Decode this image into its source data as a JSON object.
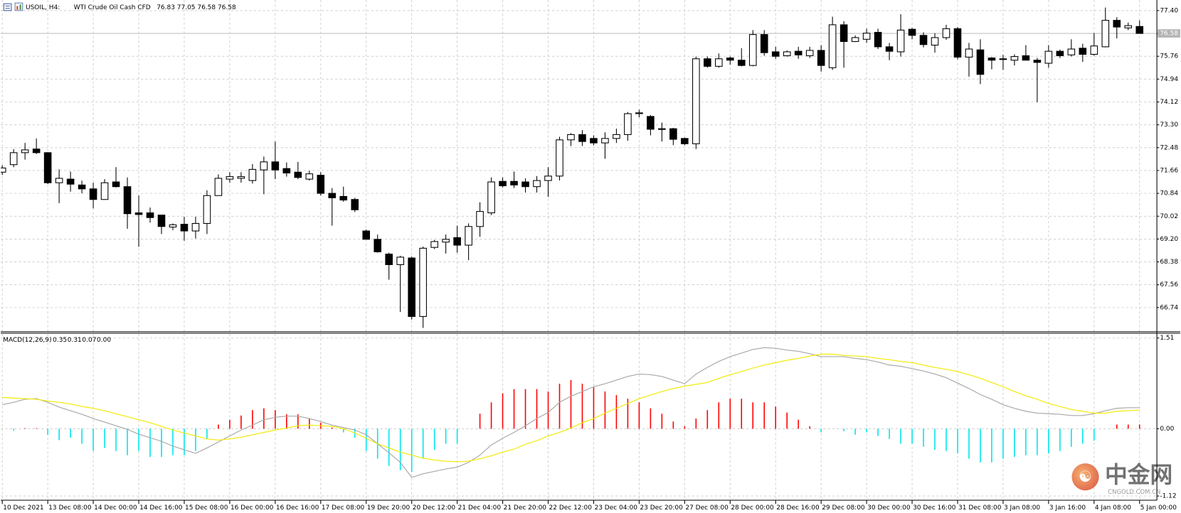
{
  "chart_data": [
    {
      "type": "candlestick",
      "symbol": "USOIL, H4:",
      "description": "WTI Crude Oil Cash CFD",
      "categories": [
        "10 Dec 2021",
        null,
        null,
        null,
        "13 Dec 08:00",
        null,
        null,
        null,
        "14 Dec 00:00",
        null,
        null,
        null,
        "14 Dec 16:00",
        null,
        null,
        null,
        "15 Dec 08:00",
        null,
        null,
        null,
        "16 Dec 00:00",
        null,
        null,
        null,
        "16 Dec 16:00",
        null,
        null,
        null,
        "17 Dec 08:00",
        null,
        null,
        null,
        "19 Dec 20:00",
        null,
        null,
        null,
        "20 Dec 12:00",
        null,
        null,
        null,
        "21 Dec 04:00",
        null,
        null,
        null,
        "21 Dec 20:00",
        null,
        null,
        null,
        "22 Dec 12:00",
        null,
        null,
        null,
        "23 Dec 04:00",
        null,
        null,
        null,
        "23 Dec 20:00",
        null,
        null,
        null,
        "27 Dec 08:00",
        null,
        null,
        null,
        "28 Dec 00:00",
        null,
        null,
        null,
        "28 Dec 16:00",
        null,
        null,
        null,
        "29 Dec 08:00",
        null,
        null,
        null,
        "30 Dec 00:00",
        null,
        null,
        null,
        "30 Dec 16:00",
        null,
        null,
        null,
        "31 Dec 08:00",
        null,
        null,
        null,
        "3 Jan 08:00",
        null,
        null,
        null,
        "3 Jan 16:00",
        null,
        null,
        null,
        "4 Jan 08:00",
        null,
        null,
        null,
        "5 Jan 00:00"
      ],
      "open": [
        71.6,
        71.87,
        72.3,
        72.43,
        72.3,
        71.22,
        71.35,
        71.14,
        71.0,
        70.62,
        71.25,
        71.08,
        70.14,
        70.14,
        70.06,
        69.63,
        69.73,
        69.49,
        69.76,
        70.76,
        71.35,
        71.38,
        71.3,
        71.68,
        71.97,
        71.73,
        71.6,
        71.35,
        71.49,
        70.84,
        70.73,
        70.62,
        69.49,
        69.19,
        68.66,
        68.28,
        68.52,
        66.42,
        68.9,
        69.09,
        69.25,
        68.98,
        69.65,
        70.14,
        71.27,
        71.27,
        71.25,
        71.08,
        71.3,
        71.46,
        72.76,
        72.95,
        72.81,
        72.65,
        72.81,
        72.95,
        73.7,
        73.6,
        73.16,
        73.16,
        72.81,
        72.62,
        75.67,
        75.4,
        75.7,
        75.62,
        75.43,
        76.54,
        75.92,
        75.78,
        75.94,
        75.78,
        75.97,
        75.35,
        76.89,
        76.29,
        76.37,
        76.62,
        76.1,
        75.92,
        76.73,
        76.51,
        76.16,
        76.43,
        76.75,
        75.73,
        75.99,
        75.7,
        75.67,
        75.62,
        75.78,
        75.62,
        75.51,
        75.94,
        75.81,
        76.05,
        75.83,
        76.1,
        77.05,
        76.78,
        76.83
      ],
      "high": [
        71.85,
        72.43,
        72.65,
        72.81,
        72.32,
        71.7,
        71.62,
        71.3,
        71.22,
        71.35,
        71.78,
        71.41,
        70.76,
        70.33,
        70.06,
        69.76,
        70.0,
        70.0,
        70.95,
        71.52,
        71.6,
        71.6,
        71.89,
        72.16,
        72.7,
        71.95,
        71.97,
        71.65,
        71.6,
        71.03,
        71.08,
        70.68,
        69.54,
        69.36,
        68.71,
        68.6,
        68.57,
        68.93,
        69.17,
        69.36,
        69.68,
        69.76,
        70.52,
        71.41,
        71.41,
        71.62,
        71.38,
        71.46,
        71.78,
        72.87,
        73.0,
        73.11,
        72.92,
        73.03,
        73.16,
        73.76,
        73.84,
        73.65,
        73.38,
        73.19,
        72.84,
        75.75,
        75.75,
        75.86,
        75.75,
        76.05,
        76.7,
        76.7,
        76.1,
        75.97,
        76.1,
        76.1,
        76.16,
        77.18,
        77.02,
        76.51,
        76.75,
        76.75,
        76.24,
        77.27,
        76.78,
        76.62,
        76.59,
        76.89,
        76.81,
        76.24,
        76.37,
        75.73,
        75.81,
        75.83,
        76.16,
        75.7,
        76.16,
        76.0,
        76.37,
        76.21,
        76.59,
        77.51,
        77.16,
        76.97,
        77.05
      ],
      "low": [
        71.5,
        71.78,
        72.05,
        72.25,
        71.17,
        70.49,
        70.9,
        70.84,
        70.3,
        70.62,
        71.05,
        69.57,
        68.92,
        69.79,
        69.38,
        69.52,
        69.14,
        69.22,
        69.38,
        70.76,
        71.22,
        71.22,
        71.19,
        70.81,
        71.35,
        71.44,
        71.35,
        71.3,
        70.76,
        69.68,
        70.54,
        70.17,
        69.19,
        68.71,
        67.74,
        66.58,
        66.31,
        66.01,
        68.84,
        68.68,
        68.71,
        68.44,
        69.28,
        70.06,
        71.05,
        71.03,
        70.87,
        70.87,
        70.71,
        71.3,
        72.54,
        72.54,
        72.57,
        72.08,
        72.65,
        72.73,
        73.57,
        72.92,
        72.7,
        72.57,
        72.57,
        72.43,
        75.35,
        75.35,
        75.46,
        75.4,
        75.4,
        75.78,
        75.67,
        75.75,
        75.67,
        75.7,
        75.21,
        75.27,
        75.35,
        76.27,
        76.24,
        76.02,
        75.62,
        75.75,
        76.37,
        76.08,
        75.89,
        76.35,
        75.65,
        75.03,
        74.76,
        75.29,
        75.27,
        75.43,
        75.62,
        74.11,
        75.35,
        75.7,
        75.75,
        75.56,
        75.78,
        76.08,
        76.4,
        76.7,
        76.58
      ],
      "close": [
        71.75,
        72.3,
        72.4,
        72.3,
        71.22,
        71.38,
        71.17,
        71.0,
        70.62,
        71.22,
        71.08,
        70.11,
        70.08,
        69.97,
        69.65,
        69.71,
        69.49,
        69.76,
        70.76,
        71.38,
        71.44,
        71.44,
        71.7,
        71.97,
        71.68,
        71.57,
        71.41,
        71.54,
        70.84,
        70.68,
        70.6,
        70.25,
        69.19,
        68.74,
        68.28,
        68.55,
        66.42,
        68.87,
        69.11,
        69.19,
        68.98,
        69.65,
        70.19,
        71.25,
        71.11,
        71.14,
        71.08,
        71.3,
        71.46,
        72.76,
        72.95,
        72.7,
        72.65,
        72.81,
        72.95,
        73.7,
        73.73,
        73.14,
        73.14,
        72.78,
        72.62,
        75.67,
        75.4,
        75.67,
        75.62,
        75.43,
        76.54,
        75.89,
        75.76,
        75.92,
        75.81,
        75.97,
        75.43,
        76.89,
        76.29,
        76.43,
        76.59,
        76.1,
        75.94,
        76.7,
        76.51,
        76.18,
        76.43,
        76.75,
        75.73,
        76.02,
        75.11,
        75.62,
        75.65,
        75.75,
        75.62,
        75.54,
        75.94,
        75.78,
        76.02,
        75.83,
        76.13,
        77.05,
        76.81,
        76.86,
        76.58
      ],
      "up_color": "#ffffff",
      "down_color": "#000000",
      "outline_color": "#000000",
      "price_line_color": "#c0c0c0",
      "price_label_color": "#b4b4b4",
      "ylim": [
        65.9,
        77.78
      ],
      "yticks": [
        {
          "value": 77.4,
          "label": "77.40"
        },
        76.58,
        75.76,
        74.94,
        74.12,
        {
          "value": 73.3,
          "label": "73.30"
        },
        72.48,
        71.66,
        70.84,
        70.02,
        {
          "value": 69.2,
          "label": "69.20"
        },
        68.38,
        67.56,
        66.74
      ],
      "grid": true
    },
    {
      "type": "macd",
      "title": "MACD(12,26,9)",
      "readout": [
        0.35,
        0.31,
        0.07,
        {
          "value": 0,
          "label": "0.00"
        }
      ],
      "histogram": {
        "positive_color": "#ff0000",
        "negative_color": "#00e5ee",
        "values": [
          0,
          -0.03,
          0.01,
          0.01,
          -0.1,
          -0.19,
          -0.15,
          -0.25,
          -0.37,
          -0.32,
          -0.37,
          -0.44,
          -0.37,
          -0.47,
          -0.47,
          -0.44,
          -0.44,
          -0.37,
          -0.17,
          0.07,
          0.15,
          0.22,
          0.31,
          0.34,
          0.31,
          0.24,
          0.24,
          0.17,
          0.1,
          0.02,
          -0.06,
          -0.15,
          -0.37,
          -0.5,
          -0.62,
          -0.69,
          -0.72,
          -0.5,
          -0.35,
          -0.25,
          -0.25,
          0,
          0.25,
          0.44,
          0.59,
          0.66,
          0.66,
          0.66,
          0.62,
          0.75,
          0.81,
          0.75,
          0.69,
          0.62,
          0.56,
          0.5,
          0.44,
          0.34,
          0.25,
          0.12,
          0.04,
          0.17,
          0.31,
          0.44,
          0.5,
          0.5,
          0.44,
          0.44,
          0.37,
          0.27,
          0.15,
          0.04,
          -0.06,
          0,
          -0.04,
          -0.1,
          -0.06,
          -0.12,
          -0.17,
          -0.25,
          -0.25,
          -0.3,
          -0.35,
          -0.37,
          -0.41,
          -0.5,
          -0.56,
          -0.56,
          -0.5,
          -0.47,
          -0.44,
          -0.44,
          -0.41,
          -0.37,
          -0.3,
          -0.25,
          -0.2,
          0,
          0.07,
          0.07,
          0.07
        ]
      },
      "lines": [
        {
          "color": "#a8a8a8",
          "values": [
            0.4,
            0.44,
            0.49,
            0.5,
            0.44,
            0.36,
            0.3,
            0.24,
            0.17,
            0.11,
            0.05,
            -0.01,
            -0.09,
            -0.15,
            -0.21,
            -0.29,
            -0.35,
            -0.41,
            -0.32,
            -0.22,
            -0.12,
            -0.02,
            0.06,
            0.15,
            0.19,
            0.21,
            0.21,
            0.17,
            0.12,
            0.06,
            0.02,
            -0.02,
            -0.1,
            -0.25,
            -0.4,
            -0.56,
            -0.81,
            -0.75,
            -0.71,
            -0.67,
            -0.64,
            -0.56,
            -0.44,
            -0.27,
            -0.16,
            -0.06,
            0.05,
            0.17,
            0.27,
            0.44,
            0.54,
            0.62,
            0.7,
            0.75,
            0.81,
            0.87,
            0.91,
            0.9,
            0.87,
            0.81,
            0.75,
            0.91,
            1.02,
            1.12,
            1.2,
            1.26,
            1.32,
            1.35,
            1.34,
            1.31,
            1.29,
            1.25,
            1.2,
            1.2,
            1.2,
            1.17,
            1.15,
            1.11,
            1.06,
            1.04,
            1.0,
            0.96,
            0.91,
            0.85,
            0.76,
            0.67,
            0.57,
            0.49,
            0.4,
            0.34,
            0.29,
            0.26,
            0.25,
            0.24,
            0.22,
            0.22,
            0.25,
            0.3,
            0.34,
            0.35,
            0.35
          ]
        },
        {
          "color": "#f2ea00",
          "values": [
            0.52,
            0.51,
            0.5,
            0.49,
            0.46,
            0.44,
            0.41,
            0.37,
            0.34,
            0.3,
            0.25,
            0.2,
            0.15,
            0.1,
            0.04,
            -0.02,
            -0.07,
            -0.12,
            -0.17,
            -0.19,
            -0.17,
            -0.14,
            -0.1,
            -0.06,
            -0.02,
            0.01,
            0.05,
            0.06,
            0.05,
            0.04,
            0.0,
            -0.07,
            -0.16,
            -0.25,
            -0.32,
            -0.39,
            -0.44,
            -0.49,
            -0.52,
            -0.54,
            -0.55,
            -0.54,
            -0.5,
            -0.45,
            -0.39,
            -0.34,
            -0.26,
            -0.2,
            -0.12,
            -0.06,
            0.01,
            0.1,
            0.17,
            0.26,
            0.34,
            0.42,
            0.5,
            0.56,
            0.62,
            0.67,
            0.71,
            0.74,
            0.77,
            0.84,
            0.9,
            0.95,
            1.01,
            1.06,
            1.1,
            1.14,
            1.17,
            1.21,
            1.24,
            1.24,
            1.22,
            1.21,
            1.2,
            1.17,
            1.15,
            1.12,
            1.1,
            1.06,
            1.02,
            0.99,
            0.95,
            0.9,
            0.84,
            0.77,
            0.7,
            0.62,
            0.55,
            0.49,
            0.42,
            0.37,
            0.32,
            0.29,
            0.26,
            0.26,
            0.29,
            0.3,
            0.31
          ]
        }
      ],
      "ylim": [
        -1.19,
        1.59
      ],
      "yticks": [
        1.51,
        {
          "value": 0,
          "label": "0.00"
        },
        -1.12
      ],
      "grid": true
    }
  ],
  "watermark": {
    "name": "中金网",
    "site": "CNGOLD.COM.CN"
  }
}
